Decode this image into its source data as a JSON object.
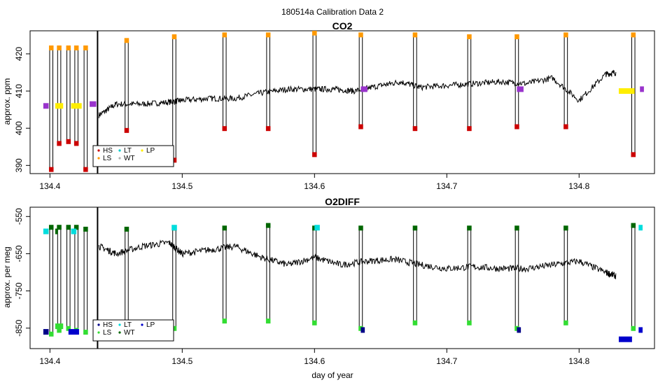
{
  "figure": {
    "main_title": "180514a   Calibration Data 2",
    "xlabel": "day of year"
  },
  "colors": {
    "line": "#000000",
    "HS": "#cc0000",
    "LS": "#ff9900",
    "LT": "#00cccc",
    "WT": "#b0b0b0",
    "LP": "#ffee00",
    "purple": "#9933cc",
    "o2_HS": "#000088",
    "o2_LS": "#33dd33",
    "o2_LT": "#00dddd",
    "o2_WT": "#006600",
    "o2_LP": "#0000cc"
  },
  "chart_data": [
    {
      "type": "line",
      "title": "CO2",
      "xlabel": "",
      "ylabel": "approx. ppm",
      "xlim": [
        134.385,
        134.857
      ],
      "ylim": [
        387.8,
        426.2
      ],
      "xticks": [
        134.4,
        134.5,
        134.6,
        134.7,
        134.8
      ],
      "xtick_labels": [
        "134.4",
        "134.5",
        "134.6",
        "134.7",
        "134.8"
      ],
      "yticks": [
        390,
        400,
        410,
        420
      ],
      "ytick_labels": [
        "390",
        "400",
        "410",
        "420"
      ],
      "grid": false,
      "legend": {
        "placement": "bottom-left",
        "entries": [
          "HS",
          "LS",
          "LT",
          "WT",
          "LP"
        ]
      },
      "baseline": {
        "x": [
          134.437,
          134.45,
          134.47,
          134.49,
          134.5,
          134.52,
          134.54,
          134.56,
          134.58,
          134.6,
          134.615,
          134.63,
          134.65,
          134.665,
          134.68,
          134.7,
          134.72,
          134.74,
          134.76,
          134.78,
          134.8,
          134.82,
          134.828
        ],
        "y": [
          403.5,
          406.5,
          406.5,
          407.0,
          407.5,
          408.0,
          408.0,
          409.5,
          410.5,
          410.5,
          410.5,
          410.0,
          411.5,
          412.5,
          411.0,
          411.5,
          412.0,
          412.5,
          412.0,
          413.5,
          407.5,
          414.5,
          415.0
        ]
      },
      "calibration_spikes": [
        {
          "x": 134.401,
          "top": 421.5,
          "bottom": 389.0
        },
        {
          "x": 134.407,
          "top": 421.5,
          "bottom": 396.0
        },
        {
          "x": 134.414,
          "top": 421.5,
          "bottom": 396.5
        },
        {
          "x": 134.42,
          "top": 421.5,
          "bottom": 396.0
        },
        {
          "x": 134.427,
          "top": 421.5,
          "bottom": 389.0
        },
        {
          "x": 134.458,
          "top": 423.5,
          "bottom": 399.5
        },
        {
          "x": 134.494,
          "top": 424.5,
          "bottom": 391.5
        },
        {
          "x": 134.532,
          "top": 425.0,
          "bottom": 400.0
        },
        {
          "x": 134.565,
          "top": 425.0,
          "bottom": 400.0
        },
        {
          "x": 134.6,
          "top": 425.5,
          "bottom": 393.0
        },
        {
          "x": 134.635,
          "top": 425.0,
          "bottom": 400.5
        },
        {
          "x": 134.676,
          "top": 425.0,
          "bottom": 400.0
        },
        {
          "x": 134.717,
          "top": 424.5,
          "bottom": 400.0
        },
        {
          "x": 134.753,
          "top": 424.5,
          "bottom": 400.5
        },
        {
          "x": 134.79,
          "top": 425.0,
          "bottom": 400.5
        },
        {
          "x": 134.841,
          "top": 425.0,
          "bottom": 393.0
        }
      ],
      "flat_segments": [
        {
          "x0": 134.395,
          "x1": 134.399,
          "y": 406.0,
          "series": "purple"
        },
        {
          "x0": 134.404,
          "x1": 134.41,
          "y": 406.0,
          "series": "LP"
        },
        {
          "x0": 134.416,
          "x1": 134.424,
          "y": 406.0,
          "series": "LP"
        },
        {
          "x0": 134.43,
          "x1": 134.435,
          "y": 406.5,
          "series": "purple"
        },
        {
          "x0": 134.635,
          "x1": 134.64,
          "y": 410.5,
          "series": "purple"
        },
        {
          "x0": 134.753,
          "x1": 134.758,
          "y": 410.5,
          "series": "purple"
        },
        {
          "x0": 134.83,
          "x1": 134.842,
          "y": 410.0,
          "series": "LP"
        },
        {
          "x0": 134.846,
          "x1": 134.849,
          "y": 410.5,
          "series": "purple"
        }
      ]
    },
    {
      "type": "line",
      "title": "O2DIFF",
      "xlabel": "day of year",
      "ylabel": "approx. per meg",
      "xlim": [
        134.385,
        134.857
      ],
      "ylim": [
        -905,
        -525
      ],
      "xticks": [
        134.4,
        134.5,
        134.6,
        134.7,
        134.8
      ],
      "xtick_labels": [
        "134.4",
        "134.5",
        "134.6",
        "134.7",
        "134.8"
      ],
      "yticks": [
        -850,
        -750,
        -650,
        -550
      ],
      "ytick_labels": [
        "-850",
        "-750",
        "-650",
        "-550"
      ],
      "grid": false,
      "legend": {
        "placement": "bottom-left",
        "entries": [
          "HS",
          "LS",
          "LT",
          "WT",
          "LP"
        ]
      },
      "baseline": {
        "x": [
          134.437,
          134.45,
          134.47,
          134.49,
          134.5,
          134.52,
          134.54,
          134.56,
          134.58,
          134.6,
          134.62,
          134.64,
          134.66,
          134.68,
          134.7,
          134.72,
          134.74,
          134.76,
          134.78,
          134.8,
          134.82,
          134.828
        ],
        "y": [
          -630,
          -650,
          -630,
          -620,
          -650,
          -640,
          -630,
          -660,
          -680,
          -660,
          -680,
          -670,
          -665,
          -680,
          -690,
          -685,
          -690,
          -690,
          -680,
          -670,
          -700,
          -710
        ]
      },
      "calibration_spikes": [
        {
          "x": 134.401,
          "top": -580,
          "bottom": -865
        },
        {
          "x": 134.407,
          "top": -580,
          "bottom": -855
        },
        {
          "x": 134.414,
          "top": -580,
          "bottom": -850
        },
        {
          "x": 134.42,
          "top": -580,
          "bottom": -855
        },
        {
          "x": 134.427,
          "top": -585,
          "bottom": -860
        },
        {
          "x": 134.458,
          "top": -585,
          "bottom": -850
        },
        {
          "x": 134.494,
          "top": -582,
          "bottom": -850
        },
        {
          "x": 134.532,
          "top": -582,
          "bottom": -830
        },
        {
          "x": 134.565,
          "top": -575,
          "bottom": -830
        },
        {
          "x": 134.6,
          "top": -582,
          "bottom": -835
        },
        {
          "x": 134.635,
          "top": -582,
          "bottom": -850
        },
        {
          "x": 134.676,
          "top": -582,
          "bottom": -835
        },
        {
          "x": 134.717,
          "top": -582,
          "bottom": -835
        },
        {
          "x": 134.753,
          "top": -582,
          "bottom": -850
        },
        {
          "x": 134.79,
          "top": -582,
          "bottom": -835
        },
        {
          "x": 134.841,
          "top": -575,
          "bottom": -850
        }
      ],
      "flat_segments": [
        {
          "x0": 134.395,
          "x1": 134.399,
          "y": -860,
          "series": "o2_HS"
        },
        {
          "x0": 134.404,
          "x1": 134.41,
          "y": -845,
          "series": "o2_LS"
        },
        {
          "x0": 134.414,
          "x1": 134.422,
          "y": -860,
          "series": "o2_LP"
        },
        {
          "x0": 134.395,
          "x1": 134.399,
          "y": -590,
          "series": "o2_LT"
        },
        {
          "x0": 134.404,
          "x1": 134.406,
          "y": -590,
          "series": "o2_WT"
        },
        {
          "x0": 134.416,
          "x1": 134.42,
          "y": -590,
          "series": "o2_LT"
        },
        {
          "x0": 134.492,
          "x1": 134.496,
          "y": -580,
          "series": "o2_LT"
        },
        {
          "x0": 134.6,
          "x1": 134.604,
          "y": -580,
          "series": "o2_LT"
        },
        {
          "x0": 134.635,
          "x1": 134.638,
          "y": -855,
          "series": "o2_HS"
        },
        {
          "x0": 134.753,
          "x1": 134.756,
          "y": -855,
          "series": "o2_HS"
        },
        {
          "x0": 134.83,
          "x1": 134.84,
          "y": -880,
          "series": "o2_LP"
        },
        {
          "x0": 134.845,
          "x1": 134.848,
          "y": -580,
          "series": "o2_LT"
        },
        {
          "x0": 134.845,
          "x1": 134.848,
          "y": -855,
          "series": "o2_LP"
        }
      ]
    }
  ]
}
